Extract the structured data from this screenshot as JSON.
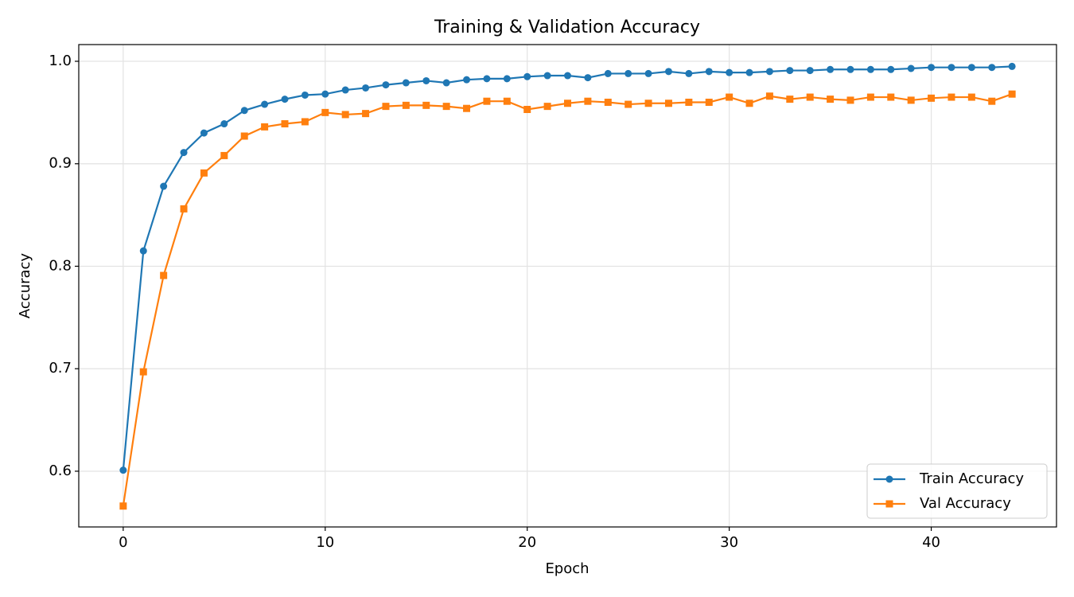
{
  "chart_data": {
    "type": "line",
    "title": "Training & Validation Accuracy",
    "xlabel": "Epoch",
    "ylabel": "Accuracy",
    "x": [
      0,
      1,
      2,
      3,
      4,
      5,
      6,
      7,
      8,
      9,
      10,
      11,
      12,
      13,
      14,
      15,
      16,
      17,
      18,
      19,
      20,
      21,
      22,
      23,
      24,
      25,
      26,
      27,
      28,
      29,
      30,
      31,
      32,
      33,
      34,
      35,
      36,
      37,
      38,
      39,
      40,
      41,
      42,
      43,
      44
    ],
    "series": [
      {
        "name": "Train Accuracy",
        "color": "#1f77b4",
        "marker": "circle",
        "values": [
          0.601,
          0.815,
          0.878,
          0.911,
          0.93,
          0.939,
          0.952,
          0.958,
          0.963,
          0.967,
          0.968,
          0.972,
          0.974,
          0.977,
          0.979,
          0.981,
          0.979,
          0.982,
          0.983,
          0.983,
          0.985,
          0.986,
          0.986,
          0.984,
          0.988,
          0.988,
          0.988,
          0.99,
          0.988,
          0.99,
          0.989,
          0.989,
          0.99,
          0.991,
          0.991,
          0.992,
          0.992,
          0.992,
          0.992,
          0.993,
          0.994,
          0.994,
          0.994,
          0.994,
          0.995
        ]
      },
      {
        "name": "Val Accuracy",
        "color": "#ff7f0e",
        "marker": "square",
        "values": [
          0.566,
          0.697,
          0.791,
          0.856,
          0.891,
          0.908,
          0.927,
          0.936,
          0.939,
          0.941,
          0.95,
          0.948,
          0.949,
          0.956,
          0.957,
          0.957,
          0.956,
          0.954,
          0.961,
          0.961,
          0.953,
          0.956,
          0.959,
          0.961,
          0.96,
          0.958,
          0.959,
          0.959,
          0.96,
          0.96,
          0.965,
          0.959,
          0.966,
          0.963,
          0.965,
          0.963,
          0.962,
          0.965,
          0.965,
          0.962,
          0.964,
          0.965,
          0.965,
          0.961,
          0.968
        ]
      }
    ],
    "xlim": [
      -2.2,
      46.2
    ],
    "ylim": [
      0.5456,
      1.0163
    ],
    "xticks": [
      0,
      10,
      20,
      30,
      40
    ],
    "yticks": [
      0.6,
      0.7,
      0.8,
      0.9,
      {
        "value": 1,
        "label": "1.0"
      }
    ],
    "grid": true,
    "legend": "lower right"
  }
}
